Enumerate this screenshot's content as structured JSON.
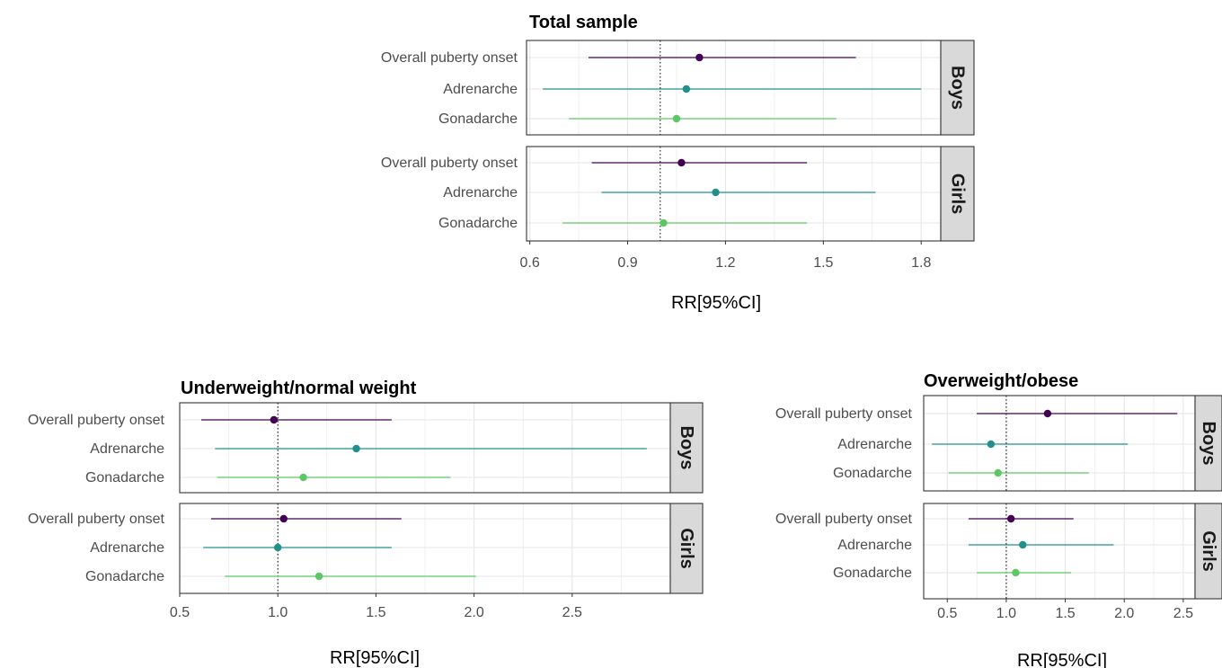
{
  "figure": {
    "colors": {
      "overall": "#440154",
      "adrenarche": "#21908C",
      "gonadarche": "#5DC863",
      "reference_line": "#000000",
      "grid": "#e6e6e6",
      "strip_fill": "#d9d9d9"
    }
  },
  "chart_data": [
    {
      "type": "forest",
      "title": "Total sample",
      "xlabel": "RR[95%CI]",
      "xlim": [
        0.59,
        1.86
      ],
      "xticks": [
        0.6,
        0.9,
        1.2,
        1.5,
        1.8
      ],
      "xtick_labels": [
        "0.6",
        "0.9",
        "1.2",
        "1.5",
        "1.8"
      ],
      "reference": 1.0,
      "grid": true,
      "panels": [
        {
          "label": "Boys",
          "rows": [
            {
              "label": "Overall puberty onset",
              "est": 1.12,
              "lo": 0.78,
              "hi": 1.6
            },
            {
              "label": "Adrenarche",
              "est": 1.08,
              "lo": 0.64,
              "hi": 1.8
            },
            {
              "label": "Gonadarche",
              "est": 1.05,
              "lo": 0.72,
              "hi": 1.54
            }
          ]
        },
        {
          "label": "Girls",
          "rows": [
            {
              "label": "Overall puberty onset",
              "est": 1.065,
              "lo": 0.79,
              "hi": 1.45
            },
            {
              "label": "Adrenarche",
              "est": 1.17,
              "lo": 0.82,
              "hi": 1.66
            },
            {
              "label": "Gonadarche",
              "est": 1.01,
              "lo": 0.7,
              "hi": 1.45
            }
          ]
        }
      ]
    },
    {
      "type": "forest",
      "title": "Underweight/normal weight",
      "xlabel": "RR[95%CI]",
      "xlim": [
        0.5,
        3.0
      ],
      "xticks": [
        0.5,
        1.0,
        1.5,
        2.0,
        2.5
      ],
      "xtick_labels": [
        "0.5",
        "1.0",
        "1.5",
        "2.0",
        "2.5"
      ],
      "reference": 1.0,
      "grid": true,
      "panels": [
        {
          "label": "Boys",
          "rows": [
            {
              "label": "Overall puberty onset",
              "est": 0.98,
              "lo": 0.61,
              "hi": 1.58
            },
            {
              "label": "Adrenarche",
              "est": 1.4,
              "lo": 0.68,
              "hi": 2.88
            },
            {
              "label": "Gonadarche",
              "est": 1.13,
              "lo": 0.69,
              "hi": 1.88
            }
          ]
        },
        {
          "label": "Girls",
          "rows": [
            {
              "label": "Overall puberty onset",
              "est": 1.03,
              "lo": 0.66,
              "hi": 1.63
            },
            {
              "label": "Adrenarche",
              "est": 1.0,
              "lo": 0.62,
              "hi": 1.58
            },
            {
              "label": "Gonadarche",
              "est": 1.21,
              "lo": 0.73,
              "hi": 2.01
            }
          ]
        }
      ]
    },
    {
      "type": "forest",
      "title": "Overweight/obese",
      "xlabel": "RR[95%CI]",
      "xlim": [
        0.3,
        2.6
      ],
      "xticks": [
        0.5,
        1.0,
        1.5,
        2.0,
        2.5
      ],
      "xtick_labels": [
        "0.5",
        "1.0",
        "1.5",
        "2.0",
        "2.5"
      ],
      "reference": 1.0,
      "grid": true,
      "panels": [
        {
          "label": "Boys",
          "rows": [
            {
              "label": "Overall puberty onset",
              "est": 1.35,
              "lo": 0.75,
              "hi": 2.45
            },
            {
              "label": "Adrenarche",
              "est": 0.87,
              "lo": 0.37,
              "hi": 2.03
            },
            {
              "label": "Gonadarche",
              "est": 0.93,
              "lo": 0.51,
              "hi": 1.7
            }
          ]
        },
        {
          "label": "Girls",
          "rows": [
            {
              "label": "Overall puberty onset",
              "est": 1.04,
              "lo": 0.68,
              "hi": 1.57
            },
            {
              "label": "Adrenarche",
              "est": 1.14,
              "lo": 0.68,
              "hi": 1.91
            },
            {
              "label": "Gonadarche",
              "est": 1.08,
              "lo": 0.75,
              "hi": 1.55
            }
          ]
        }
      ]
    }
  ]
}
